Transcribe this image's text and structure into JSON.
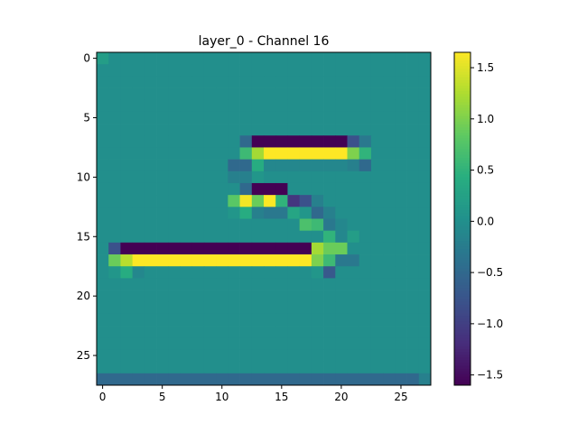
{
  "chart_data": {
    "type": "heatmap",
    "title": "layer_0 - Channel 16",
    "xlabel": "",
    "ylabel": "",
    "colormap": "viridis",
    "vmin": -1.6,
    "vmax": 1.65,
    "rows": 28,
    "cols": 28,
    "background_value": 0.0,
    "x_ticks": [
      0,
      5,
      10,
      15,
      20,
      25
    ],
    "y_ticks": [
      0,
      5,
      10,
      15,
      20,
      25
    ],
    "x_tick_labels": [
      "0",
      "5",
      "10",
      "15",
      "20",
      "25"
    ],
    "y_tick_labels": [
      "0",
      "5",
      "10",
      "15",
      "20",
      "25"
    ],
    "colorbar": {
      "ticks": [
        -1.5,
        -1.0,
        -0.5,
        0.0,
        0.5,
        1.0,
        1.5
      ],
      "tick_labels": [
        "−1.5",
        "−1.0",
        "−0.5",
        "0.0",
        "0.5",
        "1.0",
        "1.5"
      ]
    },
    "cells": [
      [
        0,
        0,
        0.2
      ],
      [
        7,
        12,
        -0.5
      ],
      [
        7,
        13,
        -1.6
      ],
      [
        7,
        14,
        -1.6
      ],
      [
        7,
        15,
        -1.6
      ],
      [
        7,
        16,
        -1.6
      ],
      [
        7,
        17,
        -1.6
      ],
      [
        7,
        18,
        -1.6
      ],
      [
        7,
        19,
        -1.6
      ],
      [
        7,
        20,
        -1.6
      ],
      [
        7,
        21,
        -0.8
      ],
      [
        7,
        22,
        -0.3
      ],
      [
        8,
        12,
        0.6
      ],
      [
        8,
        13,
        1.2
      ],
      [
        8,
        14,
        1.65
      ],
      [
        8,
        15,
        1.65
      ],
      [
        8,
        16,
        1.65
      ],
      [
        8,
        17,
        1.65
      ],
      [
        8,
        18,
        1.65
      ],
      [
        8,
        19,
        1.65
      ],
      [
        8,
        20,
        1.65
      ],
      [
        8,
        21,
        1.0
      ],
      [
        8,
        22,
        0.5
      ],
      [
        9,
        11,
        -0.5
      ],
      [
        9,
        12,
        -0.5
      ],
      [
        9,
        13,
        0.4
      ],
      [
        9,
        14,
        -0.1
      ],
      [
        9,
        15,
        -0.1
      ],
      [
        9,
        16,
        -0.1
      ],
      [
        9,
        17,
        -0.1
      ],
      [
        9,
        18,
        -0.1
      ],
      [
        9,
        19,
        -0.1
      ],
      [
        9,
        20,
        -0.1
      ],
      [
        9,
        21,
        -0.2
      ],
      [
        9,
        22,
        -0.5
      ],
      [
        10,
        11,
        -0.2
      ],
      [
        10,
        12,
        -0.2
      ],
      [
        10,
        13,
        0.1
      ],
      [
        11,
        12,
        -0.5
      ],
      [
        11,
        13,
        -1.6
      ],
      [
        11,
        14,
        -1.6
      ],
      [
        11,
        15,
        -1.6
      ],
      [
        12,
        11,
        0.8
      ],
      [
        12,
        12,
        1.6
      ],
      [
        12,
        13,
        0.9
      ],
      [
        12,
        14,
        1.65
      ],
      [
        12,
        15,
        0.5
      ],
      [
        12,
        16,
        -1.1
      ],
      [
        12,
        17,
        -0.8
      ],
      [
        12,
        18,
        -0.2
      ],
      [
        13,
        11,
        0.1
      ],
      [
        13,
        12,
        0.4
      ],
      [
        13,
        13,
        -0.2
      ],
      [
        13,
        14,
        -0.3
      ],
      [
        13,
        15,
        -0.3
      ],
      [
        13,
        16,
        0.3
      ],
      [
        13,
        17,
        0.1
      ],
      [
        13,
        18,
        -0.5
      ],
      [
        13,
        19,
        -0.2
      ],
      [
        14,
        17,
        0.7
      ],
      [
        14,
        18,
        0.6
      ],
      [
        14,
        19,
        -0.3
      ],
      [
        14,
        20,
        -0.1
      ],
      [
        15,
        19,
        0.5
      ],
      [
        15,
        20,
        -0.1
      ],
      [
        15,
        21,
        0.2
      ],
      [
        16,
        1,
        -0.8
      ],
      [
        16,
        2,
        -1.6
      ],
      [
        16,
        3,
        -1.6
      ],
      [
        16,
        4,
        -1.6
      ],
      [
        16,
        5,
        -1.6
      ],
      [
        16,
        6,
        -1.6
      ],
      [
        16,
        7,
        -1.6
      ],
      [
        16,
        8,
        -1.6
      ],
      [
        16,
        9,
        -1.6
      ],
      [
        16,
        10,
        -1.6
      ],
      [
        16,
        11,
        -1.6
      ],
      [
        16,
        12,
        -1.6
      ],
      [
        16,
        13,
        -1.6
      ],
      [
        16,
        14,
        -1.6
      ],
      [
        16,
        15,
        -1.6
      ],
      [
        16,
        16,
        -1.6
      ],
      [
        16,
        17,
        -1.6
      ],
      [
        16,
        18,
        1.2
      ],
      [
        16,
        19,
        0.9
      ],
      [
        16,
        20,
        0.9
      ],
      [
        17,
        1,
        0.9
      ],
      [
        17,
        2,
        1.3
      ],
      [
        17,
        3,
        1.65
      ],
      [
        17,
        4,
        1.65
      ],
      [
        17,
        5,
        1.65
      ],
      [
        17,
        6,
        1.65
      ],
      [
        17,
        7,
        1.65
      ],
      [
        17,
        8,
        1.65
      ],
      [
        17,
        9,
        1.65
      ],
      [
        17,
        10,
        1.65
      ],
      [
        17,
        11,
        1.65
      ],
      [
        17,
        12,
        1.65
      ],
      [
        17,
        13,
        1.65
      ],
      [
        17,
        14,
        1.65
      ],
      [
        17,
        15,
        1.65
      ],
      [
        17,
        16,
        1.65
      ],
      [
        17,
        17,
        1.65
      ],
      [
        17,
        18,
        1.0
      ],
      [
        17,
        19,
        0.6
      ],
      [
        17,
        20,
        -0.3
      ],
      [
        17,
        21,
        -0.3
      ],
      [
        18,
        1,
        0.1
      ],
      [
        18,
        2,
        0.4
      ],
      [
        18,
        3,
        -0.1
      ],
      [
        18,
        18,
        0.1
      ],
      [
        18,
        19,
        -0.7
      ],
      [
        27,
        0,
        -0.5
      ],
      [
        27,
        1,
        -0.5
      ],
      [
        27,
        2,
        -0.5
      ],
      [
        27,
        3,
        -0.5
      ],
      [
        27,
        4,
        -0.5
      ],
      [
        27,
        5,
        -0.5
      ],
      [
        27,
        6,
        -0.5
      ],
      [
        27,
        7,
        -0.5
      ],
      [
        27,
        8,
        -0.5
      ],
      [
        27,
        9,
        -0.5
      ],
      [
        27,
        10,
        -0.5
      ],
      [
        27,
        11,
        -0.5
      ],
      [
        27,
        12,
        -0.5
      ],
      [
        27,
        13,
        -0.5
      ],
      [
        27,
        14,
        -0.5
      ],
      [
        27,
        15,
        -0.5
      ],
      [
        27,
        16,
        -0.5
      ],
      [
        27,
        17,
        -0.5
      ],
      [
        27,
        18,
        -0.5
      ],
      [
        27,
        19,
        -0.5
      ],
      [
        27,
        20,
        -0.5
      ],
      [
        27,
        21,
        -0.5
      ],
      [
        27,
        22,
        -0.5
      ],
      [
        27,
        23,
        -0.5
      ],
      [
        27,
        24,
        -0.5
      ],
      [
        27,
        25,
        -0.5
      ],
      [
        27,
        26,
        -0.5
      ],
      [
        27,
        27,
        -0.2
      ]
    ]
  }
}
